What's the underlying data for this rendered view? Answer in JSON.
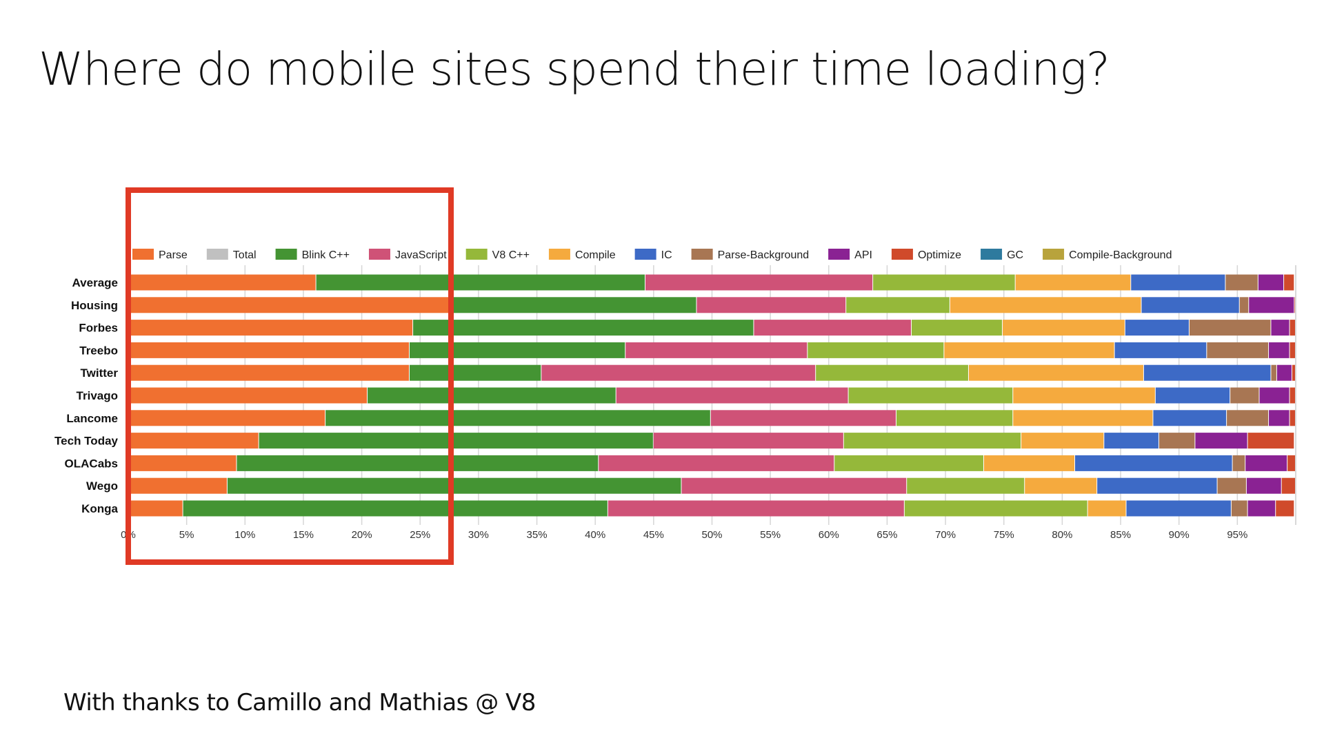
{
  "slide": {
    "title": "Where do mobile sites spend their time loading?",
    "footer": "With thanks to Camillo and Mathias @ V8"
  },
  "chart_data": {
    "type": "bar",
    "orientation": "horizontal",
    "stacked": "percent",
    "title": "",
    "xlabel": "",
    "ylabel": "",
    "xlim": [
      0,
      100
    ],
    "x_ticks": [
      "0%",
      "5%",
      "10%",
      "15%",
      "20%",
      "25%",
      "30%",
      "35%",
      "40%",
      "45%",
      "50%",
      "55%",
      "60%",
      "65%",
      "70%",
      "75%",
      "80%",
      "85%",
      "90%",
      "95%"
    ],
    "grid": true,
    "legend_position": "top",
    "categories": [
      "Average",
      "Housing",
      "Forbes",
      "Treebo",
      "Twitter",
      "Trivago",
      "Lancome",
      "Tech Today",
      "OLACabs",
      "Wego",
      "Konga"
    ],
    "series": [
      {
        "name": "Parse",
        "color": "#f07030",
        "values": [
          16.1,
          27.5,
          24.4,
          24.1,
          24.1,
          20.5,
          16.9,
          11.2,
          9.3,
          8.5,
          4.7
        ]
      },
      {
        "name": "Total",
        "color": "#c0c0c0",
        "values": [
          0,
          0,
          0,
          0,
          0,
          0,
          0,
          0,
          0,
          0,
          0
        ]
      },
      {
        "name": "Blink C++",
        "color": "#449433",
        "values": [
          28.2,
          21.2,
          29.2,
          18.5,
          11.3,
          21.3,
          33.0,
          33.8,
          31.0,
          38.9,
          36.4
        ]
      },
      {
        "name": "JavaScript",
        "color": "#cf5277",
        "values": [
          19.5,
          12.8,
          13.5,
          15.6,
          23.5,
          19.9,
          15.9,
          16.3,
          20.2,
          19.3,
          25.4
        ]
      },
      {
        "name": "V8 C++",
        "color": "#95b83a",
        "values": [
          12.2,
          8.9,
          7.8,
          11.7,
          13.1,
          14.1,
          10.0,
          15.2,
          12.8,
          10.1,
          15.7
        ]
      },
      {
        "name": "Compile",
        "color": "#f5aa3e",
        "values": [
          9.9,
          16.4,
          10.5,
          14.6,
          15.0,
          12.2,
          12.0,
          7.1,
          7.8,
          6.2,
          3.3
        ]
      },
      {
        "name": "IC",
        "color": "#3d6ac6",
        "values": [
          8.1,
          8.4,
          5.5,
          7.9,
          10.9,
          6.4,
          6.3,
          4.7,
          13.5,
          10.3,
          9.0
        ]
      },
      {
        "name": "Parse-Background",
        "color": "#a87653",
        "values": [
          2.8,
          0.8,
          7.0,
          5.3,
          0.5,
          2.5,
          3.6,
          3.1,
          1.1,
          2.5,
          1.4
        ]
      },
      {
        "name": "API",
        "color": "#8a2293",
        "values": [
          2.2,
          3.9,
          1.6,
          1.8,
          1.3,
          2.6,
          1.8,
          4.5,
          3.6,
          3.0,
          2.4
        ]
      },
      {
        "name": "Optimize",
        "color": "#d04a2b",
        "values": [
          0.9,
          0.1,
          0.5,
          0.5,
          0.3,
          0.5,
          0.5,
          4.0,
          0.7,
          1.2,
          1.6
        ]
      },
      {
        "name": "GC",
        "color": "#2e7a9e",
        "values": [
          0,
          0,
          0,
          0,
          0,
          0,
          0,
          0,
          0,
          0,
          0
        ]
      },
      {
        "name": "Compile-Background",
        "color": "#b8a33c",
        "values": [
          0,
          0,
          0,
          0,
          0,
          0,
          0,
          0,
          0,
          0,
          0
        ]
      }
    ],
    "highlight_color": "#e03a25",
    "highlight_range_percent": [
      0,
      27.5
    ]
  }
}
